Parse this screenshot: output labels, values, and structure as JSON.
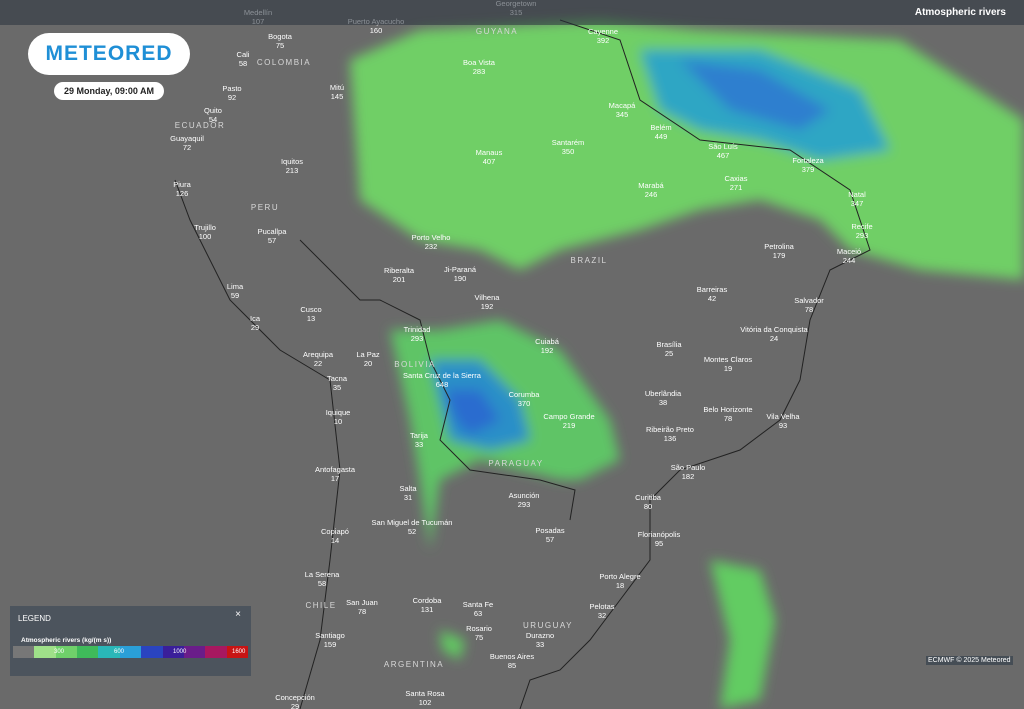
{
  "header": {
    "layer": "Atmospheric rivers"
  },
  "logo": "METEORED",
  "date": "29 Monday, 09:00 AM",
  "legend": {
    "title": "LEGEND",
    "close": "×",
    "subtitle": "Atmospheric rivers (kg/(m s))",
    "ticks": [
      "300",
      "600",
      "1000",
      "1600"
    ]
  },
  "credit": "ECMWF © 2025 Meteored",
  "countries": [
    "COLOMBIA",
    "ECUADOR",
    "PERU",
    "BRAZIL",
    "BOLIVIA",
    "PARAGUAY",
    "CHILE",
    "URUGUAY",
    "ARGENTINA",
    "GUYANA"
  ],
  "cities": [
    {
      "name": "Medellín",
      "value": 107
    },
    {
      "name": "Bogota",
      "value": 75
    },
    {
      "name": "Cali",
      "value": 58
    },
    {
      "name": "Pasto",
      "value": 92
    },
    {
      "name": "Quito",
      "value": 54
    },
    {
      "name": "Guayaquil",
      "value": 72
    },
    {
      "name": "Mitú",
      "value": 145
    },
    {
      "name": "Puerto Ayacucho",
      "value": 160
    },
    {
      "name": "Georgetown",
      "value": 315
    },
    {
      "name": "Cayenne",
      "value": 392
    },
    {
      "name": "Boa Vista",
      "value": 283
    },
    {
      "name": "Macapá",
      "value": 345
    },
    {
      "name": "Belém",
      "value": 449
    },
    {
      "name": "São Luís",
      "value": 467
    },
    {
      "name": "Fortaleza",
      "value": 379
    },
    {
      "name": "Natal",
      "value": 347
    },
    {
      "name": "Recife",
      "value": 293
    },
    {
      "name": "Maceió",
      "value": 244
    },
    {
      "name": "Manaus",
      "value": 407
    },
    {
      "name": "Santarém",
      "value": 350
    },
    {
      "name": "Caxias",
      "value": 271
    },
    {
      "name": "Marabá",
      "value": 246
    },
    {
      "name": "Iquitos",
      "value": 213
    },
    {
      "name": "Piura",
      "value": 126
    },
    {
      "name": "Trujillo",
      "value": 100
    },
    {
      "name": "Pucallpa",
      "value": 57
    },
    {
      "name": "Porto Velho",
      "value": 232
    },
    {
      "name": "Petrolina",
      "value": 179
    },
    {
      "name": "Riberalta",
      "value": 201
    },
    {
      "name": "Ji-Paraná",
      "value": 190
    },
    {
      "name": "Barreiras",
      "value": 42
    },
    {
      "name": "Lima",
      "value": 59
    },
    {
      "name": "Vilhena",
      "value": 192
    },
    {
      "name": "Salvador",
      "value": 78
    },
    {
      "name": "Cusco",
      "value": 13
    },
    {
      "name": "Ica",
      "value": 29
    },
    {
      "name": "Trinidad",
      "value": 293
    },
    {
      "name": "Cuiabá",
      "value": 192
    },
    {
      "name": "Vitória da Conquista",
      "value": 24
    },
    {
      "name": "Brasília",
      "value": 25
    },
    {
      "name": "Arequipa",
      "value": 22
    },
    {
      "name": "La Paz",
      "value": 20
    },
    {
      "name": "Montes Claros",
      "value": 19
    },
    {
      "name": "Santa Cruz de la Sierra",
      "value": 648
    },
    {
      "name": "Tacna",
      "value": 35
    },
    {
      "name": "Uberlândia",
      "value": 38
    },
    {
      "name": "Corumba",
      "value": 370
    },
    {
      "name": "Iquique",
      "value": 10
    },
    {
      "name": "Campo Grande",
      "value": 219
    },
    {
      "name": "Belo Horizonte",
      "value": 78
    },
    {
      "name": "Vila Velha",
      "value": 93
    },
    {
      "name": "Ribeirão Preto",
      "value": 136
    },
    {
      "name": "Tarija",
      "value": 33
    },
    {
      "name": "Antofagasta",
      "value": 17
    },
    {
      "name": "São Paulo",
      "value": 182
    },
    {
      "name": "Salta",
      "value": 31
    },
    {
      "name": "Asunción",
      "value": 293
    },
    {
      "name": "Curitiba",
      "value": 80
    },
    {
      "name": "San Miguel de Tucumán",
      "value": 52
    },
    {
      "name": "Posadas",
      "value": 57
    },
    {
      "name": "Copiapó",
      "value": 14
    },
    {
      "name": "Florianópolis",
      "value": 95
    },
    {
      "name": "La Serena",
      "value": 58
    },
    {
      "name": "Porto Alegre",
      "value": 18
    },
    {
      "name": "San Juan",
      "value": 78
    },
    {
      "name": "Cordoba",
      "value": 131
    },
    {
      "name": "Santa Fe",
      "value": 63
    },
    {
      "name": "Pelotas",
      "value": 32
    },
    {
      "name": "Rosario",
      "value": 75
    },
    {
      "name": "Durazno",
      "value": 33
    },
    {
      "name": "Santiago",
      "value": 159
    },
    {
      "name": "Buenos Aires",
      "value": 85
    },
    {
      "name": "Santa Rosa",
      "value": 102
    },
    {
      "name": "Concepción",
      "value": 29
    }
  ]
}
